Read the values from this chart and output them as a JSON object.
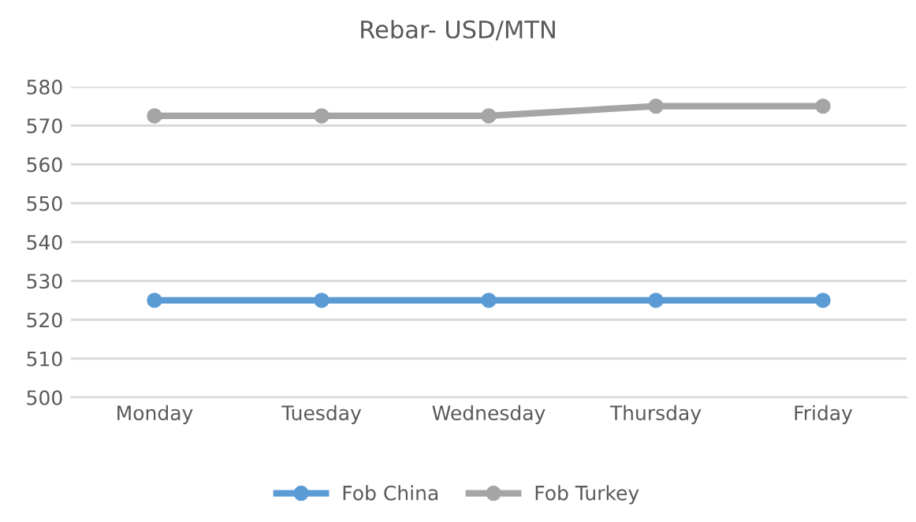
{
  "chart_data": {
    "type": "line",
    "title": "Rebar- USD/MTN",
    "categories": [
      "Monday",
      "Tuesday",
      "Wednesday",
      "Thursday",
      "Friday"
    ],
    "series": [
      {
        "name": "Fob China",
        "color": "#5b9bd5",
        "values": [
          525,
          525,
          525,
          525,
          525
        ]
      },
      {
        "name": "Fob Turkey",
        "color": "#a5a5a5",
        "values": [
          572.5,
          572.5,
          572.5,
          575,
          575
        ]
      }
    ],
    "ylim": [
      500,
      580
    ],
    "yticks": [
      500,
      510,
      520,
      530,
      540,
      550,
      560,
      570,
      580
    ],
    "grid": "y",
    "legend": "bottom",
    "marker": "circle",
    "line_style": "solid"
  }
}
